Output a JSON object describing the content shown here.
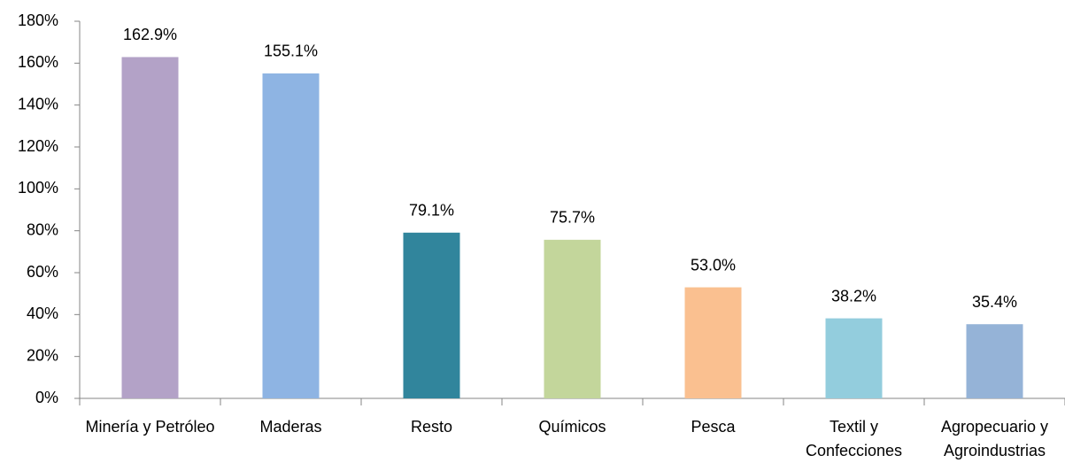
{
  "chart_data": {
    "type": "bar",
    "categories": [
      "Minería y Petróleo",
      "Maderas",
      "Resto",
      "Químicos",
      "Pesca",
      "Textil y Confecciones",
      "Agropecuario y Agroindustrias"
    ],
    "values": [
      162.9,
      155.1,
      79.1,
      75.7,
      53.0,
      38.2,
      35.4
    ],
    "value_labels": [
      "162.9%",
      "155.1%",
      "79.1%",
      "75.7%",
      "53.0%",
      "38.2%",
      "35.4%"
    ],
    "colors": [
      "#b3a2c7",
      "#8eb4e3",
      "#31859c",
      "#c3d69b",
      "#fac090",
      "#93cddd",
      "#95b3d7"
    ],
    "ylim": [
      0,
      180
    ],
    "yticks": [
      {
        "value": 0,
        "label": "0%"
      },
      {
        "value": 20,
        "label": "20%"
      },
      {
        "value": 40,
        "label": "40%"
      },
      {
        "value": 60,
        "label": "60%"
      },
      {
        "value": 80,
        "label": "80%"
      },
      {
        "value": 100,
        "label": "100%"
      },
      {
        "value": 120,
        "label": "120%"
      },
      {
        "value": 140,
        "label": "140%"
      },
      {
        "value": 160,
        "label": "160%"
      },
      {
        "value": 180,
        "label": "180%"
      }
    ],
    "grid": false
  }
}
